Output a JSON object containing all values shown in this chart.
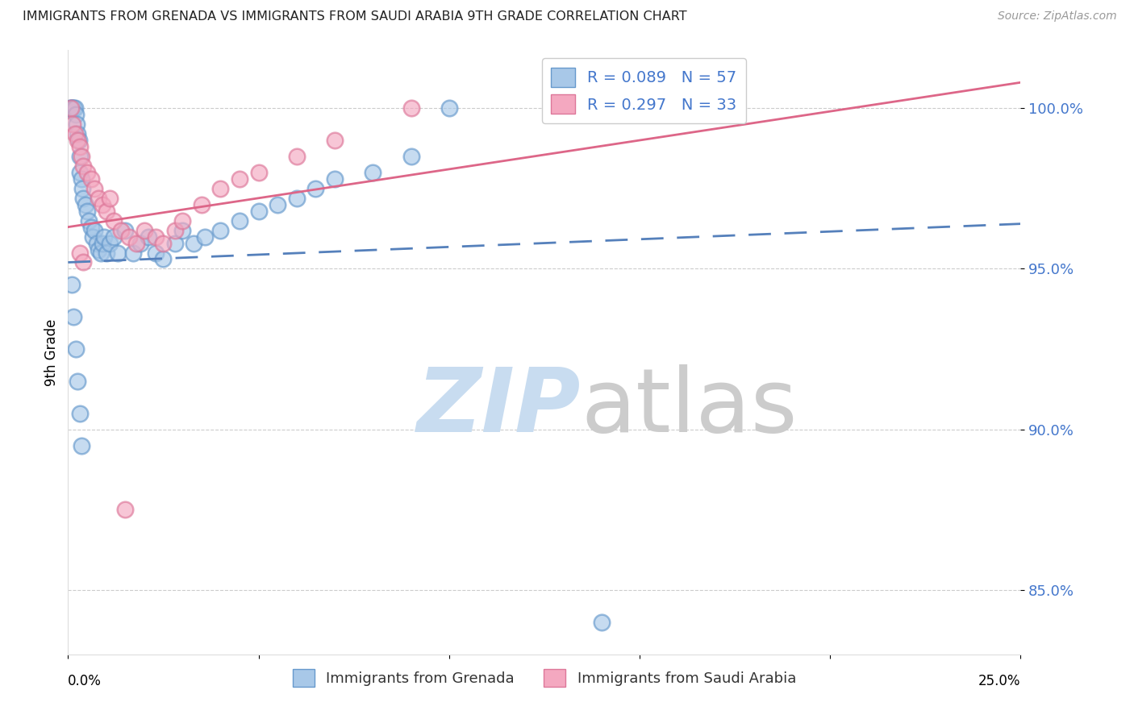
{
  "title": "IMMIGRANTS FROM GRENADA VS IMMIGRANTS FROM SAUDI ARABIA 9TH GRADE CORRELATION CHART",
  "source": "Source: ZipAtlas.com",
  "ylabel": "9th Grade",
  "grenada_R": 0.089,
  "grenada_N": 57,
  "saudi_R": 0.297,
  "saudi_N": 33,
  "grenada_color": "#A8C8E8",
  "saudi_color": "#F4A8C0",
  "grenada_edge_color": "#6699CC",
  "saudi_edge_color": "#DD7799",
  "grenada_line_color": "#5580BB",
  "saudi_line_color": "#DD6688",
  "background_color": "#ffffff",
  "watermark_zip_color": "#C8DCF0",
  "watermark_atlas_color": "#CCCCCC",
  "ytick_vals": [
    85.0,
    90.0,
    95.0,
    100.0
  ],
  "ytick_labels": [
    "85.0%",
    "90.0%",
    "95.0%",
    "100.0%"
  ],
  "ytick_color": "#4477CC",
  "xlim": [
    0.0,
    25.0
  ],
  "ylim": [
    83.0,
    101.8
  ],
  "grenada_x": [
    0.05,
    0.08,
    0.1,
    0.12,
    0.15,
    0.18,
    0.2,
    0.22,
    0.25,
    0.28,
    0.3,
    0.32,
    0.35,
    0.38,
    0.4,
    0.45,
    0.5,
    0.55,
    0.6,
    0.65,
    0.7,
    0.75,
    0.8,
    0.85,
    0.9,
    0.95,
    1.0,
    1.1,
    1.2,
    1.3,
    1.5,
    1.7,
    1.9,
    2.1,
    2.3,
    2.5,
    2.8,
    3.0,
    3.3,
    3.6,
    4.0,
    4.5,
    5.0,
    5.5,
    6.0,
    6.5,
    7.0,
    8.0,
    9.0,
    10.0,
    0.1,
    0.15,
    0.2,
    0.25,
    0.3,
    0.35,
    14.0
  ],
  "grenada_y": [
    100.0,
    100.0,
    100.0,
    100.0,
    100.0,
    100.0,
    99.8,
    99.5,
    99.2,
    99.0,
    98.5,
    98.0,
    97.8,
    97.5,
    97.2,
    97.0,
    96.8,
    96.5,
    96.3,
    96.0,
    96.2,
    95.8,
    95.6,
    95.5,
    95.8,
    96.0,
    95.5,
    95.8,
    96.0,
    95.5,
    96.2,
    95.5,
    95.8,
    96.0,
    95.5,
    95.3,
    95.8,
    96.2,
    95.8,
    96.0,
    96.2,
    96.5,
    96.8,
    97.0,
    97.2,
    97.5,
    97.8,
    98.0,
    98.5,
    100.0,
    94.5,
    93.5,
    92.5,
    91.5,
    90.5,
    89.5,
    84.0
  ],
  "saudi_x": [
    0.08,
    0.12,
    0.18,
    0.25,
    0.3,
    0.35,
    0.4,
    0.5,
    0.6,
    0.7,
    0.8,
    0.9,
    1.0,
    1.1,
    1.2,
    1.4,
    1.6,
    1.8,
    2.0,
    2.3,
    2.5,
    2.8,
    3.0,
    3.5,
    4.0,
    4.5,
    5.0,
    6.0,
    7.0,
    9.0,
    0.3,
    0.4,
    1.5
  ],
  "saudi_y": [
    100.0,
    99.5,
    99.2,
    99.0,
    98.8,
    98.5,
    98.2,
    98.0,
    97.8,
    97.5,
    97.2,
    97.0,
    96.8,
    97.2,
    96.5,
    96.2,
    96.0,
    95.8,
    96.2,
    96.0,
    95.8,
    96.2,
    96.5,
    97.0,
    97.5,
    97.8,
    98.0,
    98.5,
    99.0,
    100.0,
    95.5,
    95.2,
    87.5
  ],
  "grenada_trendline_x": [
    0.0,
    25.0
  ],
  "grenada_trendline_y": [
    95.2,
    96.4
  ],
  "saudi_trendline_x": [
    0.0,
    25.0
  ],
  "saudi_trendline_y": [
    96.3,
    100.8
  ]
}
